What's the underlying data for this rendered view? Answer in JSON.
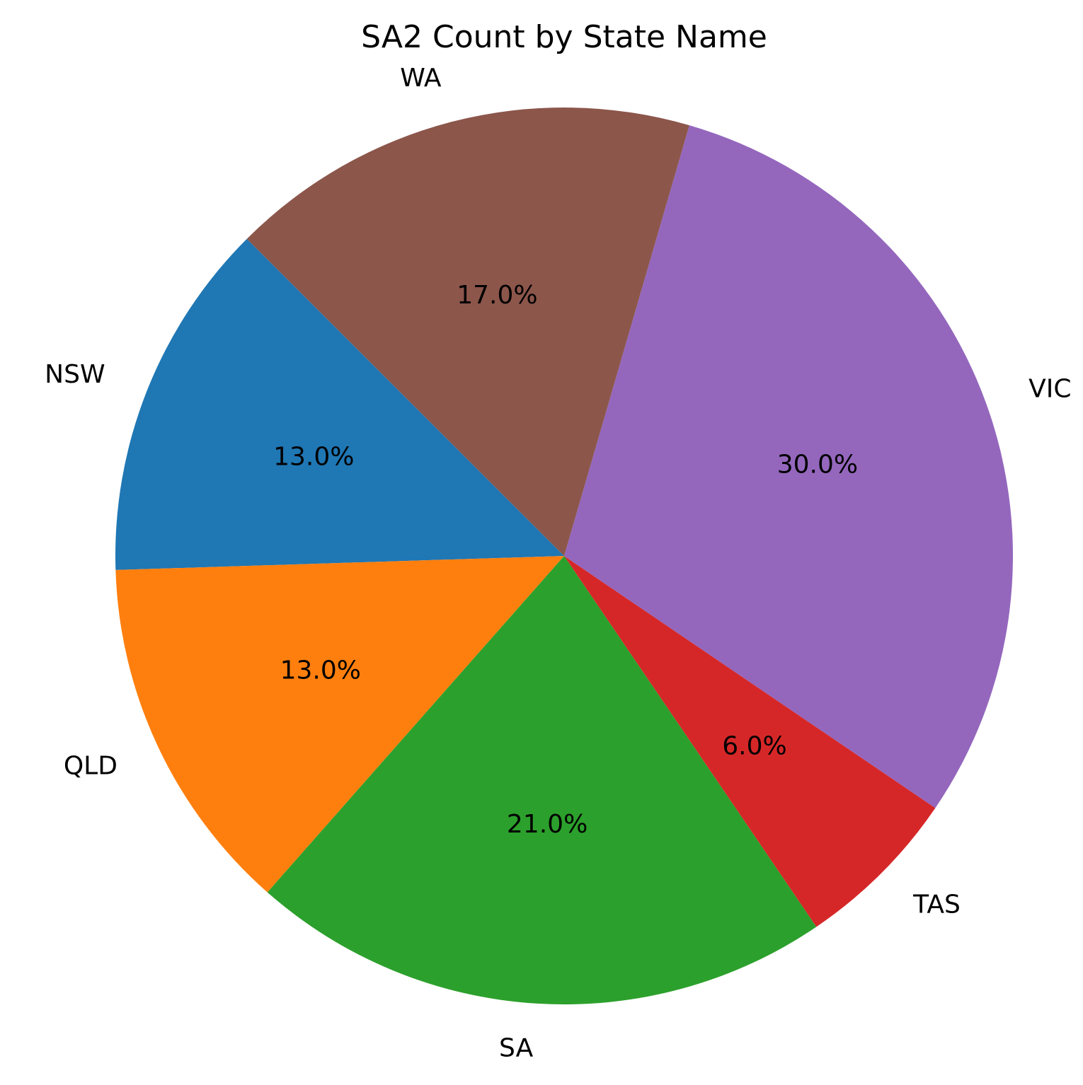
{
  "chart_data": {
    "type": "pie",
    "title": "SA2 Count by State Name",
    "categories": [
      "NSW",
      "QLD",
      "SA",
      "TAS",
      "VIC",
      "WA"
    ],
    "values": [
      13,
      13,
      21,
      6,
      30,
      17
    ],
    "percent_labels": [
      "13.0%",
      "13.0%",
      "21.0%",
      "6.0%",
      "30.0%",
      "17.0%"
    ],
    "colors": [
      "#1f77b4",
      "#ff7f0e",
      "#2ca02c",
      "#d62728",
      "#9467bd",
      "#8c564b"
    ],
    "start_angle_deg": 135,
    "direction": "counterclockwise",
    "legend": "none"
  }
}
